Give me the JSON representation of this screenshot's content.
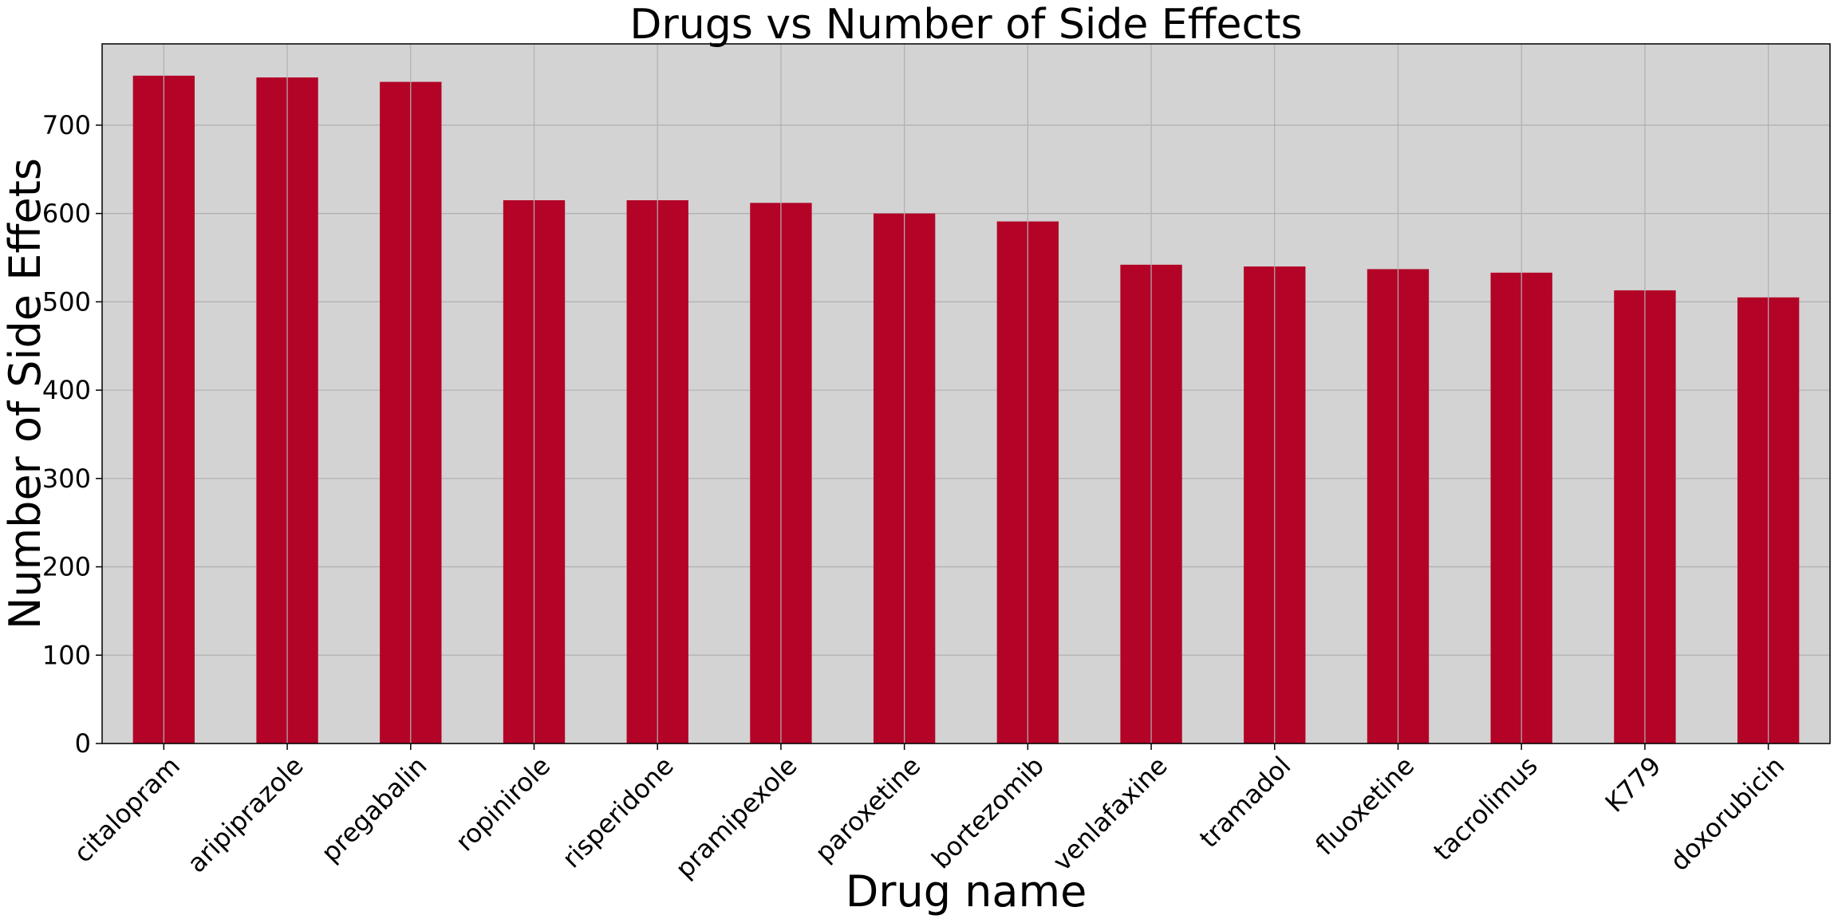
{
  "chart_data": {
    "type": "bar",
    "title": "Drugs vs Number of Side Effects",
    "xlabel": "Drug name",
    "ylabel": "Number of Side Effets",
    "categories": [
      "citalopram",
      "aripiprazole",
      "pregabalin",
      "ropinirole",
      "risperidone",
      "pramipexole",
      "paroxetine",
      "bortezomib",
      "venlafaxine",
      "tramadol",
      "fluoxetine",
      "tacrolimus",
      "K779",
      "doxorubicin"
    ],
    "values": [
      756,
      754,
      749,
      615,
      615,
      612,
      600,
      591,
      542,
      540,
      537,
      533,
      513,
      505
    ],
    "ylim": [
      0,
      792
    ],
    "yticks": [
      0,
      100,
      200,
      300,
      400,
      500,
      600,
      700
    ],
    "grid": true,
    "legend": "none",
    "colors": {
      "bar": "#b30428",
      "plot_background": "#d3d3d3",
      "grid": "#b0b0b0",
      "axis": "#000000"
    }
  }
}
